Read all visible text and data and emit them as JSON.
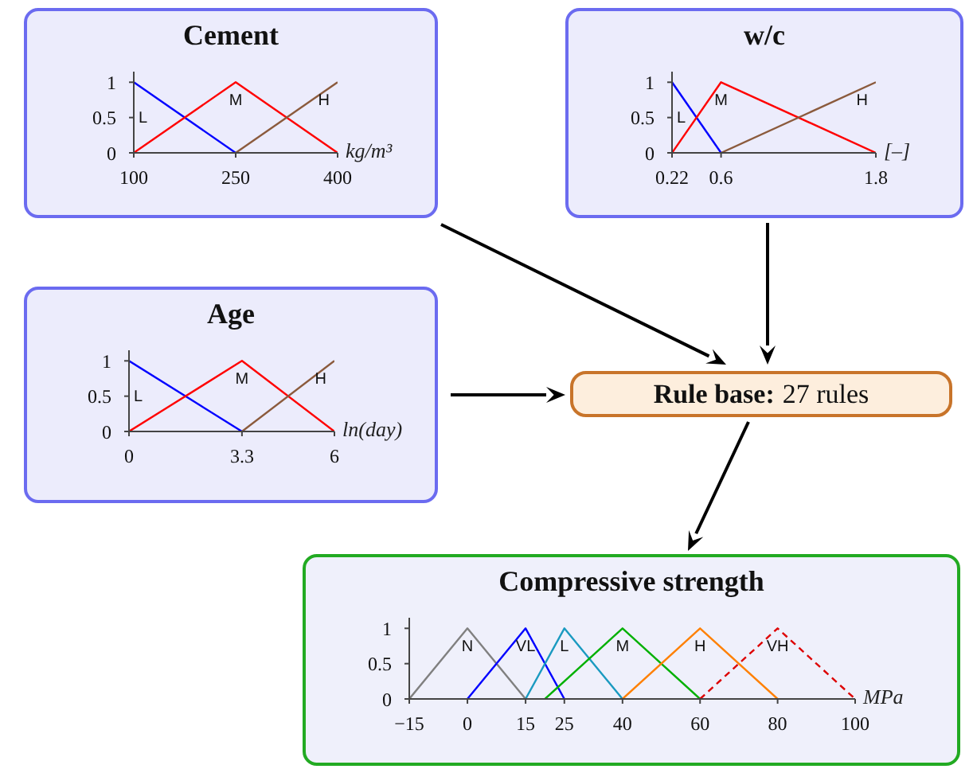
{
  "chart_data": [
    {
      "type": "line",
      "title": "Cement",
      "xlabel": "kg/m³",
      "xlim": [
        100,
        400
      ],
      "xticks": [
        100,
        250,
        400
      ],
      "ylim": [
        0,
        1.15
      ],
      "yticks": [
        0,
        0.5,
        1
      ],
      "marker": "none",
      "series": [
        {
          "name": "L",
          "color": "#0000ff",
          "x": [
            100,
            250
          ],
          "values": [
            1,
            0
          ]
        },
        {
          "name": "M",
          "color": "#ff0000",
          "x": [
            100,
            250,
            400
          ],
          "values": [
            0,
            1,
            0
          ]
        },
        {
          "name": "H",
          "color": "#8b5a3c",
          "x": [
            250,
            400
          ],
          "values": [
            0,
            1
          ]
        }
      ]
    },
    {
      "type": "line",
      "title": "w/c",
      "xlabel": "[–]",
      "xlim": [
        0.22,
        1.8
      ],
      "xticks": [
        0.22,
        0.6,
        1.8
      ],
      "ylim": [
        0,
        1.15
      ],
      "yticks": [
        0,
        0.5,
        1
      ],
      "marker": "none",
      "series": [
        {
          "name": "L",
          "color": "#0000ff",
          "x": [
            0.22,
            0.6
          ],
          "values": [
            1,
            0
          ]
        },
        {
          "name": "M",
          "color": "#ff0000",
          "x": [
            0.22,
            0.6,
            1.8
          ],
          "values": [
            0,
            1,
            0
          ]
        },
        {
          "name": "H",
          "color": "#8b5a3c",
          "x": [
            0.6,
            1.8
          ],
          "values": [
            0,
            1
          ]
        }
      ]
    },
    {
      "type": "line",
      "title": "Age",
      "xlabel": "ln(day)",
      "xlim": [
        0,
        6
      ],
      "xticks": [
        0,
        3.3,
        6
      ],
      "ylim": [
        0,
        1.15
      ],
      "yticks": [
        0,
        0.5,
        1
      ],
      "marker": "none",
      "series": [
        {
          "name": "L",
          "color": "#0000ff",
          "x": [
            0,
            3.3
          ],
          "values": [
            1,
            0
          ]
        },
        {
          "name": "M",
          "color": "#ff0000",
          "x": [
            0,
            3.3,
            6
          ],
          "values": [
            0,
            1,
            0
          ]
        },
        {
          "name": "H",
          "color": "#8b5a3c",
          "x": [
            3.3,
            6
          ],
          "values": [
            0,
            1
          ]
        }
      ]
    },
    {
      "type": "other",
      "title": "Rule base:",
      "annotations": [
        "27 rules"
      ]
    },
    {
      "type": "line",
      "title": "Compressive strength",
      "xlabel": "MPa",
      "xlim": [
        -15,
        100
      ],
      "xticks": [
        {
          "value": -15,
          "label": "−15"
        },
        0,
        15,
        25,
        40,
        60,
        80,
        100
      ],
      "ylim": [
        0,
        1.15
      ],
      "yticks": [
        0,
        0.5,
        1
      ],
      "marker": "none",
      "series": [
        {
          "name": "N",
          "color": "#808080",
          "x": [
            -15,
            0,
            15
          ],
          "values": [
            0,
            1,
            0
          ]
        },
        {
          "name": "VL",
          "color": "#0000ff",
          "x": [
            0,
            15,
            25
          ],
          "values": [
            0,
            1,
            0
          ]
        },
        {
          "name": "L",
          "color": "#1a9ac0",
          "x": [
            15,
            25,
            40
          ],
          "values": [
            0,
            1,
            0
          ]
        },
        {
          "name": "M",
          "color": "#00b000",
          "x": [
            20,
            40,
            60
          ],
          "values": [
            0,
            1,
            0
          ]
        },
        {
          "name": "H",
          "color": "#ff8000",
          "x": [
            40,
            60,
            80
          ],
          "values": [
            0,
            1,
            0
          ]
        },
        {
          "name": "VH",
          "color": "#dd0000",
          "line_style": "dashed",
          "x": [
            60,
            80,
            100
          ],
          "values": [
            0,
            1,
            0
          ]
        }
      ]
    }
  ]
}
